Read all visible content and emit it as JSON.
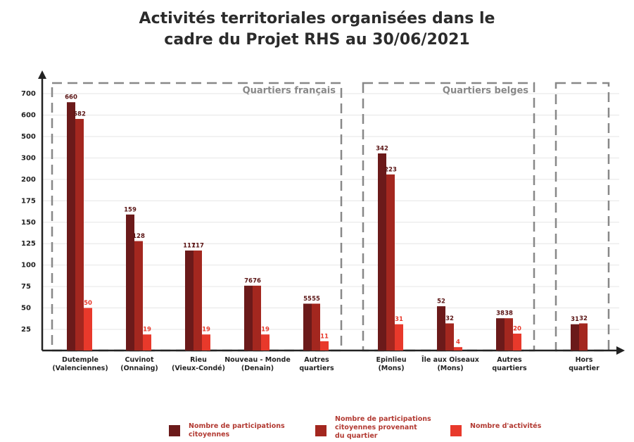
{
  "chart_data": {
    "type": "bar",
    "title": "Activités territoriales organisées dans le\ncadre du Projet RHS au 30/06/2021",
    "categories": [
      "Dutemple\n(Valenciennes)",
      "Cuvinot\n(Onnaing)",
      "Rieu\n(Vieux-Condé)",
      "Nouveau - Monde\n(Denain)",
      "Autres\nquartiers",
      "Epinlieu\n(Mons)",
      "Île aux Oiseaux\n(Mons)",
      "Autres\nquartiers",
      "Hors\nquartier"
    ],
    "groups": [
      {
        "label": "Quartiers français",
        "count": 5
      },
      {
        "label": "Quartiers belges",
        "count": 3
      },
      {
        "count": 1
      }
    ],
    "series": [
      {
        "name": "Nombre de participations\ncitoyennes",
        "color": "#6b1a1a",
        "values": [
          660,
          159,
          117,
          76,
          55,
          342,
          52,
          38,
          31
        ]
      },
      {
        "name": "Nombre de participations\ncitoyennes provenant\ndu quartier",
        "color": "#a3271f",
        "values": [
          582,
          128,
          117,
          76,
          55,
          223,
          32,
          38,
          32
        ]
      },
      {
        "name": "Nombre d'activités",
        "color": "#e8392b",
        "values": [
          50,
          19,
          19,
          19,
          11,
          31,
          4,
          20,
          null
        ]
      }
    ],
    "yticks": [
      25,
      50,
      75,
      100,
      125,
      150,
      175,
      200,
      300,
      500,
      600,
      700
    ],
    "grid": true
  }
}
